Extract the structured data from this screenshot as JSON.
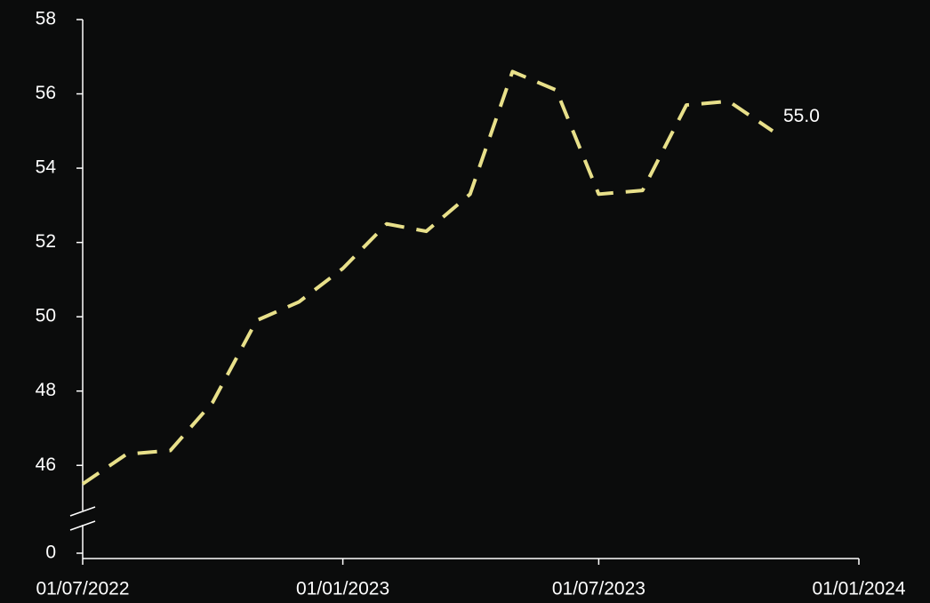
{
  "chart_data": {
    "type": "line",
    "x": [
      "01/07/2022",
      "01/08/2022",
      "01/09/2022",
      "01/10/2022",
      "01/11/2022",
      "01/12/2022",
      "01/01/2023",
      "01/02/2023",
      "01/03/2023",
      "01/04/2023",
      "01/05/2023",
      "01/06/2023",
      "01/07/2023",
      "01/08/2023",
      "01/09/2023",
      "01/10/2023",
      "01/11/2023"
    ],
    "values": [
      45.5,
      46.3,
      46.4,
      47.7,
      49.9,
      50.4,
      51.3,
      52.5,
      52.3,
      53.3,
      56.6,
      56.1,
      53.3,
      53.4,
      55.7,
      55.8,
      55.0
    ],
    "value_labels": [
      null,
      null,
      null,
      null,
      null,
      null,
      null,
      null,
      null,
      null,
      null,
      null,
      null,
      null,
      null,
      null,
      "55.0"
    ],
    "color": "#e8e08a",
    "line_style": "dashed",
    "xlim": [
      "01/07/2022",
      "01/01/2024"
    ],
    "xticks": [
      "01/07/2022",
      "01/01/2023",
      "01/07/2023",
      "01/01/2024"
    ],
    "ylim": [
      0,
      58
    ],
    "y_break": [
      0,
      45
    ],
    "yticks": [
      0,
      46,
      48,
      50,
      52,
      54,
      56,
      58
    ],
    "grid": false
  }
}
